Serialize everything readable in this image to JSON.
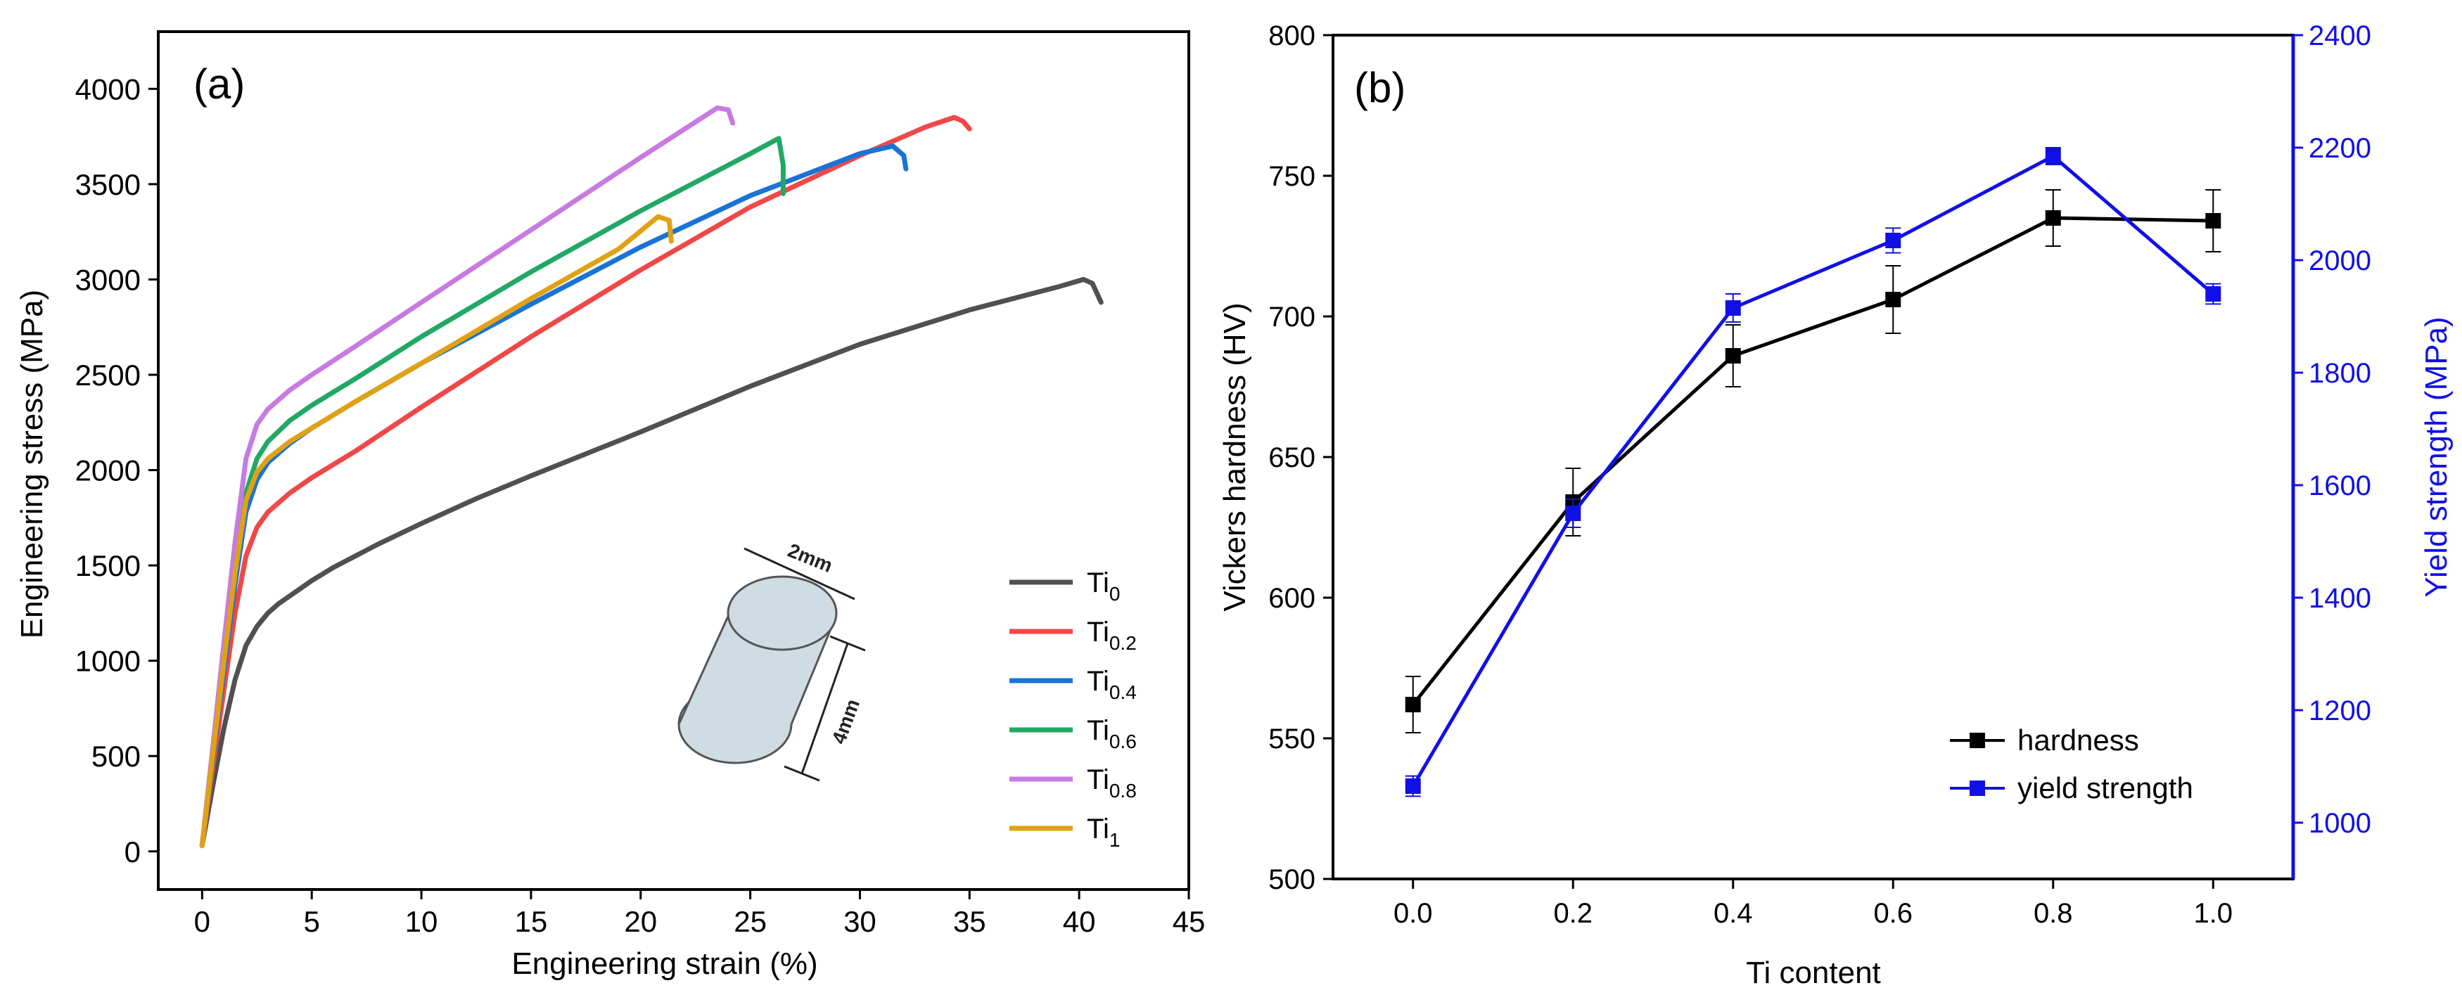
{
  "chart_data": [
    {
      "type": "line",
      "panel_label": "(a)",
      "title": "",
      "xlabel": "Engineering strain (%)",
      "ylabel": "Engineering stress (MPa)",
      "xlim": [
        -2,
        45
      ],
      "ylim": [
        -200,
        4300
      ],
      "xticks": [
        0,
        5,
        10,
        15,
        20,
        25,
        30,
        35,
        40,
        45
      ],
      "yticks": [
        0,
        500,
        1000,
        1500,
        2000,
        2500,
        3000,
        3500,
        4000
      ],
      "grid": false,
      "legend_position": "lower-right",
      "series": [
        {
          "name": "Ti0",
          "legend_base": "Ti",
          "legend_sub": "0",
          "color": "#505050",
          "x": [
            0,
            0.5,
            1,
            1.5,
            2,
            2.5,
            3,
            3.5,
            4,
            5,
            6,
            8,
            10,
            12.5,
            15,
            20,
            25,
            30,
            35,
            39,
            40.2,
            40.6,
            41
          ],
          "y": [
            30,
            350,
            650,
            900,
            1080,
            1180,
            1250,
            1300,
            1340,
            1420,
            1490,
            1610,
            1720,
            1850,
            1970,
            2200,
            2440,
            2660,
            2840,
            2960,
            3000,
            2980,
            2880
          ]
        },
        {
          "name": "Ti0.2",
          "legend_base": "Ti",
          "legend_sub": "0.2",
          "color": "#f04848",
          "x": [
            0,
            0.5,
            1,
            1.5,
            2,
            2.5,
            3,
            4,
            5,
            7,
            10,
            15,
            20,
            25,
            30,
            33,
            34.3,
            34.7,
            35
          ],
          "y": [
            30,
            450,
            850,
            1250,
            1550,
            1700,
            1780,
            1880,
            1960,
            2100,
            2330,
            2700,
            3050,
            3380,
            3650,
            3800,
            3850,
            3830,
            3790
          ]
        },
        {
          "name": "Ti0.4",
          "legend_base": "Ti",
          "legend_sub": "0.4",
          "color": "#1a73d6",
          "x": [
            0,
            0.5,
            1,
            1.5,
            2,
            2.5,
            3,
            4,
            5,
            7,
            10,
            15,
            20,
            25,
            30,
            31.5,
            32,
            32.1
          ],
          "y": [
            30,
            500,
            950,
            1400,
            1780,
            1950,
            2040,
            2140,
            2220,
            2360,
            2560,
            2870,
            3170,
            3440,
            3660,
            3700,
            3650,
            3580
          ]
        },
        {
          "name": "Ti0.6",
          "legend_base": "Ti",
          "legend_sub": "0.6",
          "color": "#22a865",
          "x": [
            0,
            0.5,
            1,
            1.5,
            2,
            2.5,
            3,
            4,
            5,
            7,
            10,
            15,
            20,
            25,
            26.3,
            26.5,
            26.5
          ],
          "y": [
            30,
            520,
            1000,
            1480,
            1880,
            2060,
            2150,
            2260,
            2340,
            2480,
            2700,
            3040,
            3360,
            3660,
            3740,
            3600,
            3450
          ]
        },
        {
          "name": "Ti0.8",
          "legend_base": "Ti",
          "legend_sub": "0.8",
          "color": "#c77be0",
          "x": [
            0,
            0.5,
            1,
            1.5,
            2,
            2.5,
            3,
            4,
            5,
            7,
            10,
            15,
            20,
            23.5,
            24,
            24.2
          ],
          "y": [
            30,
            560,
            1100,
            1620,
            2060,
            2240,
            2320,
            2420,
            2500,
            2650,
            2880,
            3260,
            3640,
            3900,
            3890,
            3820
          ]
        },
        {
          "name": "Ti1",
          "legend_base": "Ti",
          "legend_sub": "1",
          "color": "#e0a214",
          "x": [
            0,
            0.5,
            1,
            1.5,
            2,
            2.5,
            3,
            4,
            5,
            7,
            10,
            15,
            19,
            20.8,
            21.3,
            21.4
          ],
          "y": [
            30,
            520,
            1000,
            1460,
            1840,
            1990,
            2060,
            2150,
            2220,
            2360,
            2560,
            2900,
            3160,
            3330,
            3310,
            3200
          ]
        }
      ],
      "annotations": [
        "2mm",
        "4mm"
      ],
      "inset_color": "#cfdce3"
    },
    {
      "type": "line",
      "panel_label": "(b)",
      "title": "",
      "xlabel": "Ti content",
      "ylabel": "Vickers hardness (HV)",
      "y2label": "Yield strength (MPa)",
      "xlim": [
        -0.1,
        1.1
      ],
      "ylim": [
        500,
        800
      ],
      "y2lim": [
        900,
        2400
      ],
      "xticks": [
        "0.0",
        "0.2",
        "0.4",
        "0.6",
        "0.8",
        "1.0"
      ],
      "yticks": [
        500,
        550,
        600,
        650,
        700,
        750,
        800
      ],
      "y2ticks": [
        1000,
        1200,
        1400,
        1600,
        1800,
        2000,
        2200,
        2400
      ],
      "grid": false,
      "legend_position": "lower-right",
      "x": [
        0.0,
        0.2,
        0.4,
        0.6,
        0.8,
        1.0
      ],
      "series": [
        {
          "name": "hardness",
          "axis": "left",
          "color": "#000000",
          "values": [
            562,
            634,
            686,
            706,
            735,
            734
          ],
          "errors": [
            10,
            12,
            11,
            12,
            10,
            11
          ]
        },
        {
          "name": "yield strength",
          "axis": "right",
          "color": "#1010e6",
          "values": [
            1065,
            1550,
            1915,
            2035,
            2185,
            1940
          ],
          "errors": [
            18,
            25,
            25,
            22,
            15,
            18
          ]
        }
      ]
    }
  ]
}
